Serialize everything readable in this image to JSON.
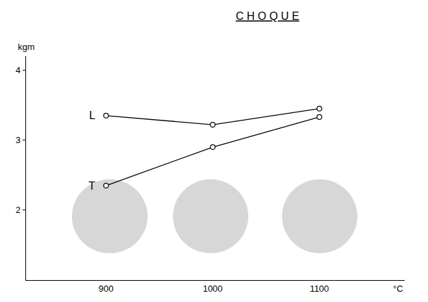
{
  "chart_data": {
    "type": "line",
    "title": "C H O Q U E",
    "y_label": "kgm",
    "x_label": "°C",
    "x": [
      900,
      1000,
      1100
    ],
    "series": [
      {
        "name": "L",
        "color": "#000000",
        "marker": "circle-open",
        "values": [
          3.35,
          3.22,
          3.45
        ]
      },
      {
        "name": "T",
        "color": "#000000",
        "marker": "circle-open",
        "values": [
          2.35,
          2.9,
          3.33
        ]
      }
    ],
    "xlim": [
      825,
      1180
    ],
    "xticks": [
      900,
      1000,
      1100
    ],
    "ylim": [
      1,
      4.2
    ],
    "yticks": [
      2,
      3,
      4
    ],
    "grid": false
  }
}
